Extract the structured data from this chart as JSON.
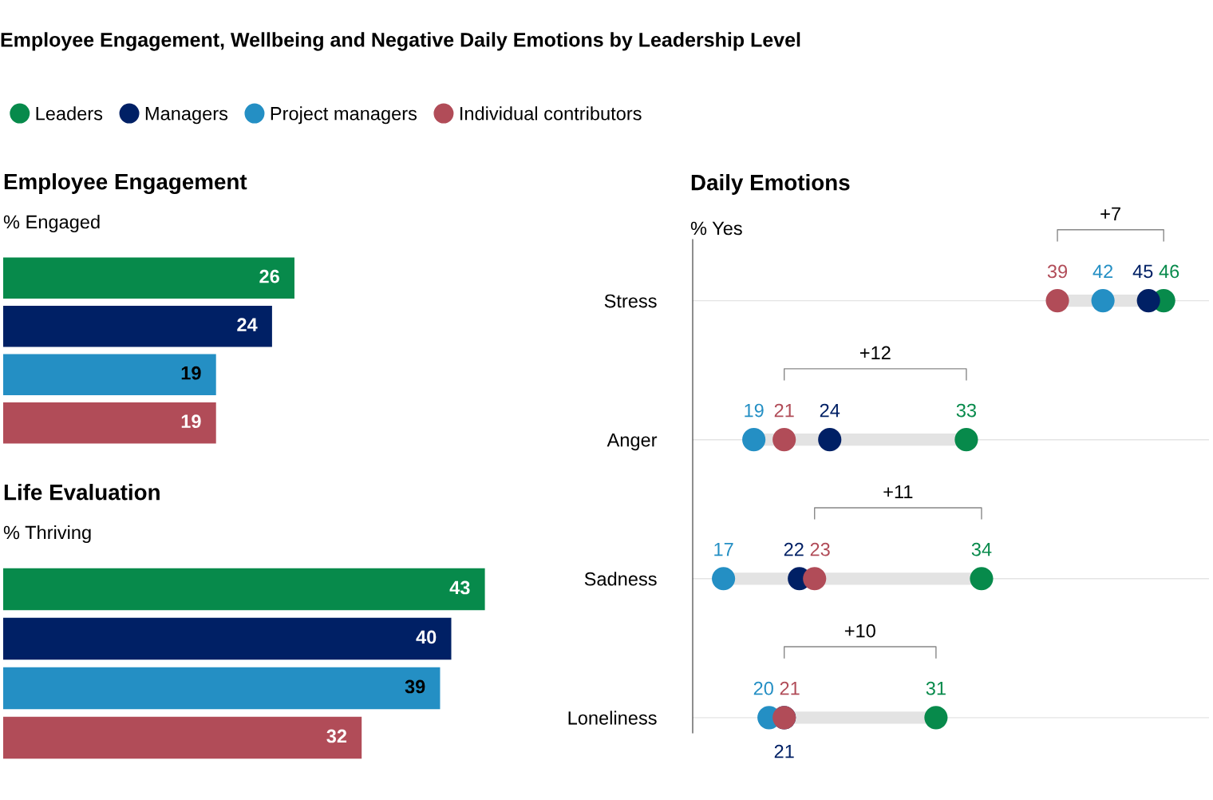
{
  "chart_data": [
    {
      "type": "bar",
      "orientation": "horizontal",
      "title": "Employee Engagement, Wellbeing and Negative Daily Emotions by Leadership Level",
      "subtitle": "Employee Engagement",
      "annotations": [
        "% Engaged"
      ],
      "categories": [
        null
      ],
      "tick_labels": false,
      "data_labels": true,
      "legend": "top",
      "series": [
        {
          "name": "Leaders",
          "color": "#078a4b",
          "values": [
            26
          ]
        },
        {
          "name": "Managers",
          "color": "#002065",
          "values": [
            24
          ]
        },
        {
          "name": "Project managers",
          "color": "#248fc4",
          "values": [
            19
          ]
        },
        {
          "name": "Individual contributors",
          "color": "#b14c58",
          "values": [
            19
          ]
        }
      ]
    },
    {
      "type": "bar",
      "orientation": "horizontal",
      "title": "Life Evaluation",
      "annotations": [
        "% Thriving"
      ],
      "categories": [
        null
      ],
      "tick_labels": false,
      "data_labels": true,
      "series": [
        {
          "color": "#078a4b",
          "values": [
            43
          ]
        },
        {
          "color": "#002065",
          "values": [
            40
          ]
        },
        {
          "color": "#248fc4",
          "values": [
            39
          ]
        },
        {
          "color": "#b14c58",
          "values": [
            32
          ]
        }
      ]
    },
    {
      "type": "scatter",
      "orientation": "horizontal",
      "title": "Daily Emotions",
      "categories": [
        "Stress",
        "Anger",
        "Sadness",
        "Loneliness"
      ],
      "tick_labels": "y",
      "grid": "y",
      "marker": "circle",
      "annotations": [
        "% Yes",
        "+7",
        "+12",
        "+11",
        "+10"
      ],
      "series": [
        {
          "color": "#078a4b",
          "values": [
            46,
            33,
            34,
            31
          ],
          "value_labels": [
            "46",
            "33",
            "34",
            "31"
          ]
        },
        {
          "color": "#002065",
          "values": [
            45,
            24,
            22,
            21
          ],
          "value_labels": [
            "45",
            "24",
            "22",
            "21"
          ]
        },
        {
          "color": "#248fc4",
          "values": [
            42,
            19,
            17,
            20
          ],
          "value_labels": [
            "42",
            "19",
            "17",
            "20"
          ]
        },
        {
          "color": "#b14c58",
          "values": [
            39,
            21,
            23,
            21
          ],
          "value_labels": [
            "39",
            "21",
            "23",
            "21"
          ]
        }
      ]
    }
  ]
}
